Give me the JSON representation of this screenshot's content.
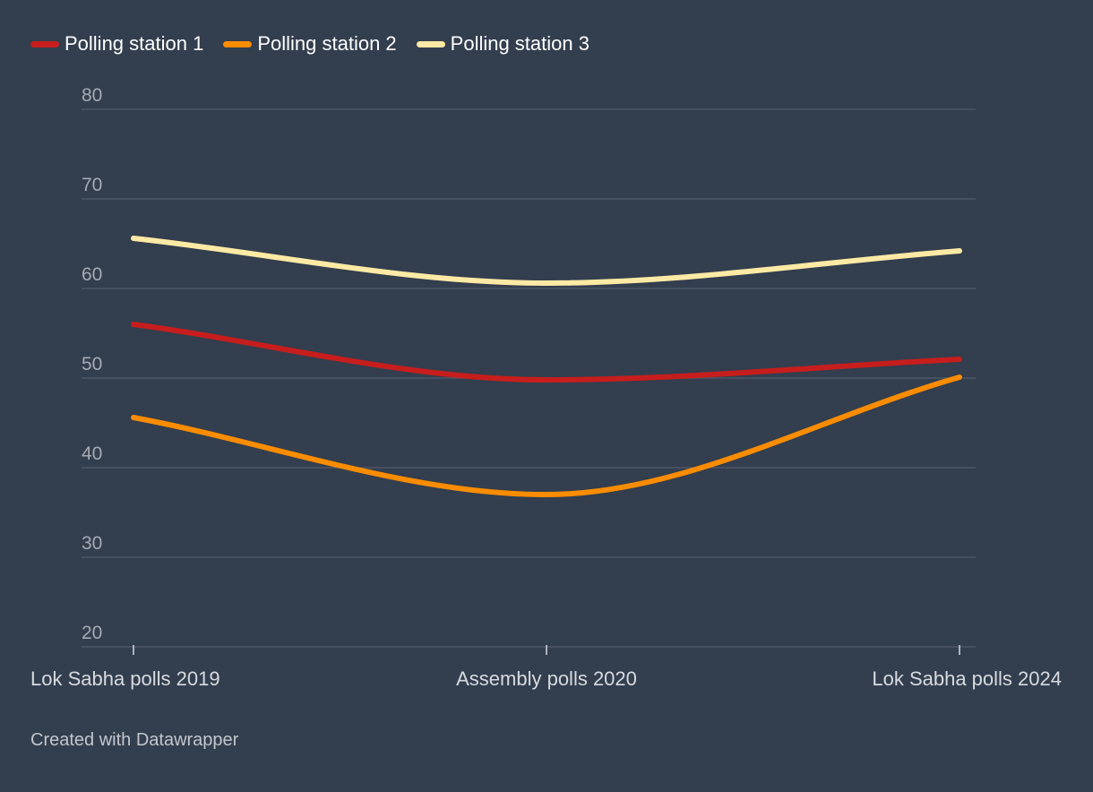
{
  "chart_data": {
    "type": "line",
    "x": [
      "Lok Sabha polls 2019",
      "Assembly polls 2020",
      "Lok Sabha polls 2024"
    ],
    "series": [
      {
        "name": "Polling station 1",
        "color": "#c71e1d",
        "values": [
          56.0,
          49.8,
          52.1
        ]
      },
      {
        "name": "Polling station 2",
        "color": "#fa8c00",
        "values": [
          45.6,
          37.0,
          50.1
        ]
      },
      {
        "name": "Polling station 3",
        "color": "#ffeaa5",
        "values": [
          65.6,
          60.6,
          64.2
        ]
      }
    ],
    "yticks": [
      "80",
      "70",
      "60",
      "50",
      "40",
      "30",
      "20"
    ],
    "ylim": [
      20,
      80
    ],
    "grid": true,
    "legend_position": "top-left",
    "curve": "smooth"
  },
  "footer": {
    "credit": "Created with Datawrapper"
  },
  "colors": {
    "background": "#333e4e",
    "gridline": "#4d5766"
  }
}
